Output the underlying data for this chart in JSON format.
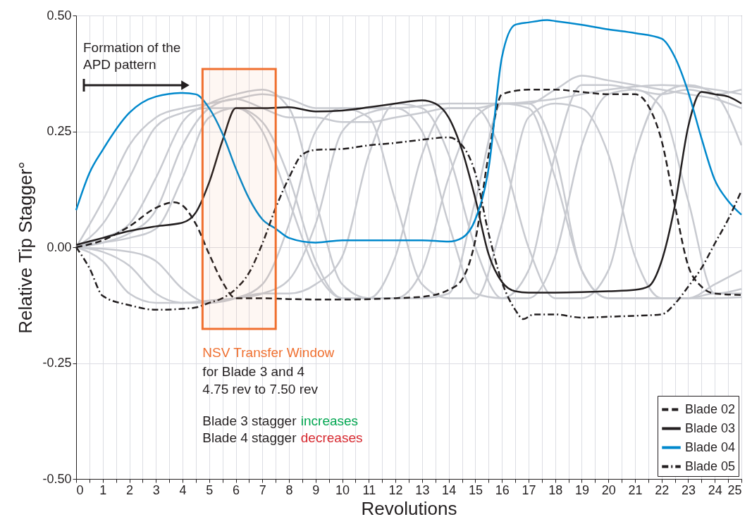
{
  "chart_data": {
    "type": "line",
    "xlabel": "Revolutions",
    "ylabel": "Relative Tip Stagger°",
    "xlim": [
      0,
      25
    ],
    "ylim": [
      -0.5,
      0.5
    ],
    "xticks": [
      0,
      {
        "value": 0.5,
        "label": null
      },
      1,
      {
        "value": 1.5,
        "label": null
      },
      2,
      {
        "value": 2.5,
        "label": null
      },
      3,
      {
        "value": 3.5,
        "label": null
      },
      4,
      {
        "value": 4.5,
        "label": null
      },
      5,
      {
        "value": 5.5,
        "label": null
      },
      6,
      {
        "value": 6.5,
        "label": null
      },
      7,
      {
        "value": 7.5,
        "label": null
      },
      8,
      {
        "value": 8.5,
        "label": null
      },
      9,
      {
        "value": 9.5,
        "label": null
      },
      10,
      {
        "value": 10.5,
        "label": null
      },
      11,
      {
        "value": 11.5,
        "label": null
      },
      12,
      {
        "value": 12.5,
        "label": null
      },
      13,
      {
        "value": 13.5,
        "label": null
      },
      14,
      {
        "value": 14.5,
        "label": null
      },
      15,
      {
        "value": 15.5,
        "label": null
      },
      16,
      {
        "value": 16.5,
        "label": null
      },
      17,
      {
        "value": 17.5,
        "label": null
      },
      18,
      {
        "value": 18.5,
        "label": null
      },
      19,
      {
        "value": 19.5,
        "label": null
      },
      20,
      {
        "value": 20.5,
        "label": null
      },
      21,
      {
        "value": 21.5,
        "label": null
      },
      22,
      {
        "value": 22.5,
        "label": null
      },
      23,
      {
        "value": 23.5,
        "label": null
      },
      24,
      {
        "value": 24.5,
        "label": null
      },
      25
    ],
    "yticks": [
      {
        "value": -0.5,
        "label": "-0.50"
      },
      {
        "value": -0.25,
        "label": "-0.25"
      },
      {
        "value": 0,
        "label": "0.00"
      },
      {
        "value": 0.25,
        "label": "0.25"
      },
      {
        "value": 0.5,
        "label": "0.50"
      }
    ],
    "grid": true,
    "legend": "bottom right",
    "marker": "none",
    "series": [
      {
        "color": "#c8cad0",
        "line_style": "solid",
        "x": [
          0,
          1,
          2,
          3,
          4,
          5,
          6,
          7,
          8,
          9,
          10,
          12,
          14,
          16,
          18,
          20,
          22,
          24,
          25
        ],
        "values": [
          0,
          0.1,
          0.22,
          0.28,
          0.3,
          0.31,
          0.32,
          0.33,
          0.32,
          0.3,
          0.3,
          0.3,
          0.31,
          0.31,
          0.32,
          0.34,
          0.35,
          0.34,
          0.33
        ]
      },
      {
        "color": "#c8cad0",
        "line_style": "solid",
        "x": [
          0,
          1,
          2,
          3,
          4,
          5,
          6,
          7,
          8,
          9,
          10,
          11,
          12,
          13,
          14,
          15,
          16,
          17,
          18,
          19,
          20,
          21,
          22,
          23,
          24,
          25
        ],
        "values": [
          0,
          0.02,
          0.05,
          0.15,
          0.27,
          0.31,
          0.33,
          0.34,
          0.3,
          0.1,
          -0.08,
          -0.11,
          -0.11,
          -0.05,
          0.15,
          0.28,
          0.31,
          0.3,
          0.15,
          -0.05,
          -0.11,
          -0.11,
          -0.11,
          -0.11,
          -0.1,
          -0.1
        ]
      },
      {
        "color": "#c8cad0",
        "line_style": "solid",
        "x": [
          0,
          1,
          2,
          3,
          4,
          5,
          6,
          7,
          8,
          9,
          10,
          11,
          12,
          13,
          14,
          15,
          16,
          17,
          18,
          19,
          20,
          21,
          22,
          23,
          24,
          25
        ],
        "values": [
          0,
          0.01,
          0.02,
          0.04,
          0.15,
          0.28,
          0.3,
          0.25,
          0.1,
          -0.05,
          -0.11,
          -0.11,
          -0.02,
          0.2,
          0.3,
          0.3,
          0.2,
          0.0,
          -0.11,
          -0.11,
          -0.05,
          0.2,
          0.33,
          0.35,
          0.33,
          0.22
        ]
      },
      {
        "color": "#c8cad0",
        "line_style": "solid",
        "x": [
          0,
          1,
          2,
          3,
          4,
          5,
          6,
          7,
          8,
          9,
          10,
          11,
          12,
          13,
          14,
          15,
          16,
          17,
          18,
          19,
          20,
          21,
          22,
          23,
          24,
          25
        ],
        "values": [
          0,
          -0.03,
          -0.1,
          -0.12,
          -0.12,
          -0.115,
          -0.11,
          -0.1,
          -0.07,
          0.05,
          0.25,
          0.29,
          0.3,
          0.25,
          0.05,
          -0.1,
          -0.11,
          -0.05,
          0.2,
          0.35,
          0.35,
          0.34,
          0.33,
          0.34,
          0.33,
          0.34
        ]
      },
      {
        "color": "#c8cad0",
        "line_style": "solid",
        "x": [
          0,
          1,
          2,
          3,
          4,
          5,
          6,
          7,
          8,
          9,
          10,
          11,
          12,
          13,
          14,
          15,
          16,
          17,
          18,
          19,
          20,
          21,
          22,
          23,
          24,
          25
        ],
        "values": [
          0,
          -0.01,
          -0.04,
          -0.1,
          -0.12,
          -0.12,
          -0.11,
          -0.08,
          0.05,
          0.25,
          0.3,
          0.28,
          0.1,
          -0.08,
          -0.11,
          -0.11,
          0.05,
          0.28,
          0.31,
          0.3,
          0.2,
          -0.02,
          -0.11,
          -0.11,
          -0.11,
          -0.108
        ]
      },
      {
        "color": "#c8cad0",
        "line_style": "solid",
        "x": [
          0,
          2,
          3,
          4,
          5,
          6,
          7,
          8,
          9,
          10,
          11,
          12,
          13,
          14,
          15,
          16,
          17,
          18,
          19,
          20,
          21,
          22,
          23,
          24,
          25
        ],
        "values": [
          0,
          -0.01,
          -0.03,
          -0.09,
          -0.12,
          -0.11,
          -0.1,
          -0.1,
          -0.08,
          -0.02,
          0.2,
          0.31,
          0.3,
          0.2,
          0.0,
          -0.11,
          -0.11,
          -0.02,
          0.22,
          0.33,
          0.34,
          0.3,
          0.1,
          -0.1,
          -0.09
        ]
      },
      {
        "color": "#c8cad0",
        "line_style": "solid",
        "x": [
          0,
          1,
          2,
          3,
          4,
          5,
          6,
          7,
          8,
          9,
          10,
          11,
          12,
          13,
          14,
          15,
          16,
          17,
          18,
          19,
          20,
          21,
          22,
          23,
          24,
          25
        ],
        "values": [
          0,
          0.05,
          0.15,
          0.26,
          0.29,
          0.3,
          0.3,
          0.27,
          0.15,
          -0.03,
          -0.11,
          -0.11,
          -0.11,
          -0.11,
          -0.1,
          0.1,
          0.31,
          0.31,
          0.34,
          0.37,
          0.36,
          0.35,
          0.34,
          0.33,
          0.32,
          0.3
        ]
      },
      {
        "color": "#c8cad0",
        "line_style": "solid",
        "x": [
          0,
          1,
          2,
          3,
          4,
          5,
          6,
          7,
          8,
          9,
          10,
          11,
          12,
          13,
          14,
          15,
          16,
          17,
          18,
          19,
          20,
          21,
          22,
          23,
          24,
          25
        ],
        "values": [
          0,
          0.01,
          0.03,
          0.08,
          0.22,
          0.3,
          0.32,
          0.3,
          0.28,
          0.28,
          0.27,
          0.27,
          0.28,
          0.29,
          0.3,
          0.3,
          0.31,
          0.31,
          0.2,
          -0.05,
          -0.11,
          -0.11,
          -0.11,
          -0.11,
          -0.08,
          -0.05
        ]
      },
      {
        "name": "Blade 02",
        "color": "#231f20",
        "line_style": "dashed",
        "x": [
          0,
          1,
          2,
          3,
          3.7,
          4,
          4.5,
          5,
          5.5,
          6,
          7,
          8,
          10,
          12,
          13,
          14,
          14.5,
          15,
          15.5,
          16,
          17,
          18,
          19,
          20,
          21,
          21.5,
          22,
          22.5,
          23,
          23.5,
          24,
          25
        ],
        "values": [
          0,
          0.015,
          0.045,
          0.085,
          0.097,
          0.09,
          0.05,
          -0.015,
          -0.075,
          -0.11,
          -0.11,
          -0.112,
          -0.113,
          -0.11,
          -0.107,
          -0.092,
          -0.07,
          0.015,
          0.2,
          0.33,
          0.34,
          0.34,
          0.335,
          0.33,
          0.33,
          0.305,
          0.23,
          0.09,
          -0.04,
          -0.085,
          -0.1,
          -0.103
        ]
      },
      {
        "name": "Blade 03",
        "color": "#231f20",
        "line_style": "solid",
        "x": [
          0,
          1,
          2,
          3,
          4,
          4.5,
          5,
          5.5,
          6,
          6.5,
          7,
          8,
          9,
          10,
          11,
          12,
          13,
          13.5,
          14,
          14.5,
          15,
          15.5,
          16,
          16.5,
          17,
          18,
          19,
          20,
          21,
          21.5,
          22,
          22.5,
          23,
          23.5,
          24,
          24.5,
          25
        ],
        "values": [
          0.005,
          0.02,
          0.035,
          0.045,
          0.053,
          0.075,
          0.14,
          0.23,
          0.3,
          0.3,
          0.3,
          0.302,
          0.293,
          0.295,
          0.302,
          0.31,
          0.317,
          0.31,
          0.28,
          0.21,
          0.105,
          -0.015,
          -0.075,
          -0.095,
          -0.098,
          -0.098,
          -0.097,
          -0.095,
          -0.092,
          -0.085,
          -0.03,
          0.09,
          0.26,
          0.335,
          0.33,
          0.325,
          0.31
        ]
      },
      {
        "name": "Blade 04",
        "color": "#0088cc",
        "line_style": "solid",
        "x": [
          0,
          0.5,
          1,
          2,
          3,
          4,
          4.5,
          5,
          5.5,
          6,
          6.5,
          7,
          7.5,
          8,
          9,
          10,
          12,
          13,
          14,
          14.5,
          15,
          15.5,
          16,
          16.5,
          17,
          17.7,
          18,
          19,
          20,
          21,
          22,
          22.5,
          23,
          23.5,
          24,
          24.5,
          25
        ],
        "values": [
          0.08,
          0.16,
          0.21,
          0.29,
          0.325,
          0.333,
          0.33,
          0.3,
          0.245,
          0.17,
          0.105,
          0.06,
          0.04,
          0.02,
          0.01,
          0.015,
          0.015,
          0.015,
          0.012,
          0.02,
          0.06,
          0.17,
          0.41,
          0.48,
          0.485,
          0.49,
          0.488,
          0.48,
          0.47,
          0.462,
          0.45,
          0.41,
          0.335,
          0.235,
          0.145,
          0.1,
          0.07
        ]
      },
      {
        "name": "Blade 05",
        "color": "#231f20",
        "line_style": "dashdot",
        "x": [
          0,
          0.5,
          1,
          2,
          3,
          4,
          4.5,
          5,
          5.5,
          6,
          6.5,
          7,
          7.5,
          8,
          8.5,
          9,
          10,
          11,
          12,
          13,
          14,
          14.5,
          15,
          15.5,
          16,
          16.5,
          16.8,
          17.2,
          18,
          19,
          20,
          21,
          22,
          22.5,
          23,
          23.5,
          24,
          24.5,
          25
        ],
        "values": [
          0,
          -0.045,
          -0.105,
          -0.125,
          -0.135,
          -0.133,
          -0.13,
          -0.12,
          -0.11,
          -0.09,
          -0.055,
          0.008,
          0.085,
          0.15,
          0.2,
          0.21,
          0.212,
          0.22,
          0.225,
          0.232,
          0.237,
          0.22,
          0.16,
          0.03,
          -0.075,
          -0.135,
          -0.155,
          -0.145,
          -0.145,
          -0.152,
          -0.15,
          -0.148,
          -0.145,
          -0.122,
          -0.085,
          -0.045,
          0.008,
          0.06,
          0.122
        ]
      }
    ],
    "bands": [
      {
        "axis": "x",
        "from": 4.75,
        "to": 7.5,
        "label": "NSV Transfer Window",
        "color": "#f07030"
      }
    ],
    "annotations": [
      "Formation of the APD pattern",
      "for Blade 3 and 4",
      "4.75 rev to 7.50 rev",
      "Blade 3 stagger increases",
      "Blade 4 stagger decreases"
    ]
  }
}
